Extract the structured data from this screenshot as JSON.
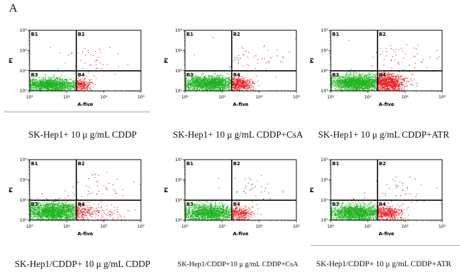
{
  "figure_label": "A",
  "axes": {
    "xlabel": "A-five",
    "ylabel": "PI",
    "x_ticks": [
      "10⁰",
      "10¹",
      "10²",
      "10³"
    ],
    "y_ticks": [
      "10³",
      "10²",
      "10¹",
      "10⁰"
    ],
    "x_divider_frac": 0.42,
    "y_divider_frac": 0.33,
    "quadrant_labels": {
      "top_left": "B1",
      "top_right": "B2",
      "bottom_left": "B3",
      "bottom_right": "B4"
    }
  },
  "colors": {
    "lower_left": "#1db31d",
    "lower_right": "#e81c1c",
    "upper_blue": "#2a2ab0",
    "upper_red": "#cf2020"
  },
  "chart_data": [
    {
      "type": "scatter",
      "x_scale": "log10 decades 0-3",
      "y_scale": "log10 decades 0-3",
      "caption": "SK-Hep1+ 10 μ g/mL CDDP",
      "seed": 11,
      "clusters": [
        {
          "cx": 0.18,
          "cy": 0.1,
          "sx": 0.11,
          "sy": 0.055,
          "n": 1600
        },
        {
          "cx": 0.46,
          "cy": 0.1,
          "sx": 0.045,
          "sy": 0.05,
          "n": 260
        },
        {
          "cx": 0.55,
          "cy": 0.48,
          "sx": 0.16,
          "sy": 0.14,
          "n": 45
        }
      ]
    },
    {
      "type": "scatter",
      "x_scale": "log10 decades 0-3",
      "y_scale": "log10 decades 0-3",
      "caption": "SK-Hep1+ 10 μ g/mL CDDP+CsA",
      "seed": 22,
      "clusters": [
        {
          "cx": 0.21,
          "cy": 0.12,
          "sx": 0.12,
          "sy": 0.06,
          "n": 1900
        },
        {
          "cx": 0.49,
          "cy": 0.11,
          "sx": 0.06,
          "sy": 0.055,
          "n": 480
        },
        {
          "cx": 0.6,
          "cy": 0.5,
          "sx": 0.17,
          "sy": 0.15,
          "n": 55
        }
      ]
    },
    {
      "type": "scatter",
      "x_scale": "log10 decades 0-3",
      "y_scale": "log10 decades 0-3",
      "caption": "SK-Hep1+ 10 μ g/mL CDDP+ATR",
      "seed": 33,
      "clusters": [
        {
          "cx": 0.23,
          "cy": 0.13,
          "sx": 0.12,
          "sy": 0.065,
          "n": 2000
        },
        {
          "cx": 0.52,
          "cy": 0.13,
          "sx": 0.075,
          "sy": 0.07,
          "n": 850
        },
        {
          "cx": 0.62,
          "cy": 0.52,
          "sx": 0.17,
          "sy": 0.15,
          "n": 60
        }
      ]
    },
    {
      "type": "scatter",
      "x_scale": "log10 decades 0-3",
      "y_scale": "log10 decades 0-3",
      "caption": "SK-Hep1/CDDP+ 10 μ g/mL CDDP",
      "seed": 44,
      "clusters": [
        {
          "cx": 0.22,
          "cy": 0.14,
          "sx": 0.13,
          "sy": 0.08,
          "n": 2200
        },
        {
          "cx": 0.6,
          "cy": 0.13,
          "sx": 0.14,
          "sy": 0.07,
          "n": 130
        },
        {
          "cx": 0.6,
          "cy": 0.48,
          "sx": 0.16,
          "sy": 0.14,
          "n": 45
        }
      ]
    },
    {
      "type": "scatter",
      "x_scale": "log10 decades 0-3",
      "y_scale": "log10 decades 0-3",
      "caption": "SK-Hep1/CDDP+10 μ g/mL CDDP+CsA",
      "seed": 55,
      "clusters": [
        {
          "cx": 0.21,
          "cy": 0.12,
          "sx": 0.12,
          "sy": 0.065,
          "n": 1700
        },
        {
          "cx": 0.49,
          "cy": 0.11,
          "sx": 0.055,
          "sy": 0.055,
          "n": 280
        },
        {
          "cx": 0.58,
          "cy": 0.5,
          "sx": 0.16,
          "sy": 0.13,
          "n": 40
        }
      ]
    },
    {
      "type": "scatter",
      "x_scale": "log10 decades 0-3",
      "y_scale": "log10 decades 0-3",
      "caption": "SK-Hep1/CDDP+ 10 μ g/mL CDDP+ATR",
      "seed": 66,
      "clusters": [
        {
          "cx": 0.22,
          "cy": 0.12,
          "sx": 0.12,
          "sy": 0.065,
          "n": 1700
        },
        {
          "cx": 0.51,
          "cy": 0.12,
          "sx": 0.065,
          "sy": 0.06,
          "n": 430
        },
        {
          "cx": 0.6,
          "cy": 0.5,
          "sx": 0.16,
          "sy": 0.13,
          "n": 40
        }
      ]
    }
  ]
}
